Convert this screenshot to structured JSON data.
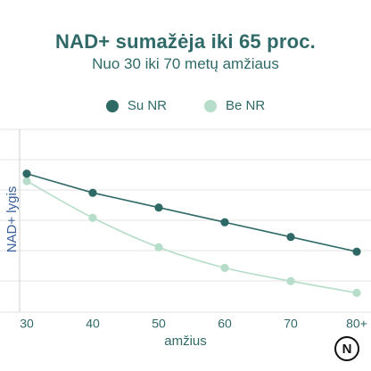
{
  "header": {
    "title": "NAD+ sumažėja iki 65 proc.",
    "subtitle": "Nuo 30 iki 70 metų amžiaus"
  },
  "brand": {
    "logo_letter": "N"
  },
  "colors": {
    "dark_series": "#2e6966",
    "light_series": "#b5ddc9",
    "grid": "#e3e3e3",
    "text": "#2f6a68"
  },
  "chart_data": {
    "type": "line",
    "title": "NAD+ sumažėja iki 65 proc.",
    "subtitle": "Nuo 30 iki 70 metų amžiaus",
    "xlabel": "amžius",
    "ylabel": "NAD+ lygis",
    "categories": [
      "30",
      "40",
      "50",
      "60",
      "70",
      "80+"
    ],
    "ylim": [
      0,
      100
    ],
    "grid": true,
    "legend_position": "top-center",
    "series": [
      {
        "name": "Su NR",
        "values": [
          85,
          72,
          62,
          52,
          42,
          32
        ]
      },
      {
        "name": "Be NR",
        "values": [
          80,
          55,
          35,
          21,
          12,
          4
        ]
      }
    ]
  }
}
